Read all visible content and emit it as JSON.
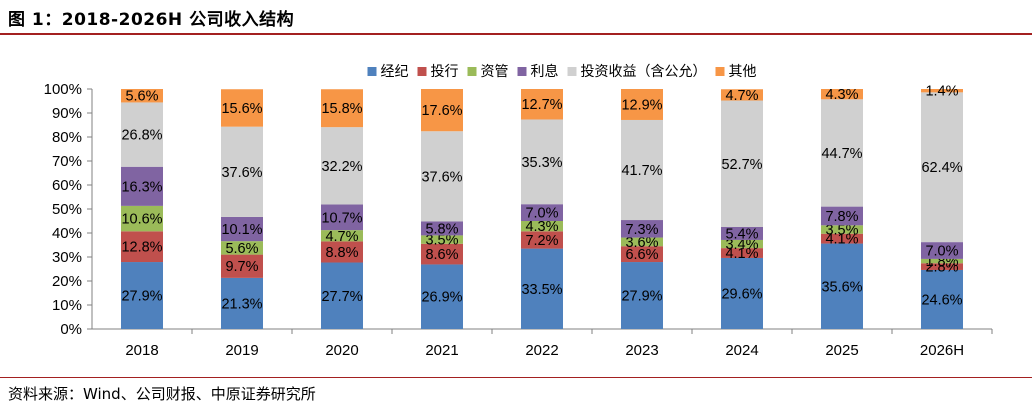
{
  "figure": {
    "title": "图 1：2018-2026H 公司收入结构",
    "source": "资料来源：Wind、公司财报、中原证券研究所"
  },
  "colors": {
    "rule": "#a32020",
    "axis": "#808080"
  },
  "chart_data": {
    "type": "bar",
    "stacked": true,
    "title": "",
    "xlabel": "",
    "ylabel": "",
    "ylim": [
      0,
      100
    ],
    "y_unit": "%",
    "yticks": [
      "0%",
      "10%",
      "20%",
      "30%",
      "40%",
      "50%",
      "60%",
      "70%",
      "80%",
      "90%",
      "100%"
    ],
    "legend_position": "top",
    "grid": false,
    "categories": [
      "2018",
      "2019",
      "2020",
      "2021",
      "2022",
      "2023",
      "2024",
      "2025",
      "2026H"
    ],
    "series": [
      {
        "name": "经纪",
        "color": "#4f81bd",
        "values": [
          27.9,
          21.3,
          27.7,
          26.9,
          33.5,
          27.9,
          29.6,
          35.6,
          24.6
        ]
      },
      {
        "name": "投行",
        "color": "#c0504d",
        "values": [
          12.8,
          9.7,
          8.8,
          8.6,
          7.2,
          6.6,
          4.1,
          4.1,
          2.8
        ]
      },
      {
        "name": "资管",
        "color": "#9bbb59",
        "values": [
          10.6,
          5.6,
          4.7,
          3.5,
          4.3,
          3.6,
          3.4,
          3.5,
          1.8
        ]
      },
      {
        "name": "利息",
        "color": "#8064a2",
        "values": [
          16.3,
          10.1,
          10.7,
          5.8,
          7.0,
          7.3,
          5.4,
          7.8,
          7.0
        ]
      },
      {
        "name": "投资收益（含公允）",
        "color": "#d0d0d0",
        "values": [
          26.8,
          37.6,
          32.2,
          37.6,
          35.3,
          41.7,
          52.7,
          44.7,
          62.4
        ]
      },
      {
        "name": "其他",
        "color": "#f79646",
        "values": [
          5.6,
          15.6,
          15.8,
          17.6,
          12.7,
          12.9,
          4.7,
          4.3,
          1.4
        ]
      }
    ]
  }
}
